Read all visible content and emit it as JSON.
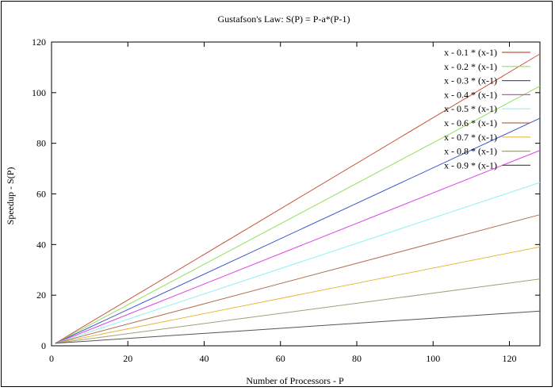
{
  "chart_data": {
    "type": "line",
    "title": "Gustafson's Law: S(P) = P-a*(P-1)",
    "xlabel": "Number of Processors - P",
    "ylabel": "Speedup - S(P)",
    "xlim": [
      0,
      128
    ],
    "ylim": [
      0,
      120
    ],
    "xticks": [
      0,
      20,
      40,
      60,
      80,
      100,
      120
    ],
    "yticks": [
      0,
      20,
      40,
      60,
      80,
      100,
      120
    ],
    "x": [
      1,
      128
    ],
    "grid": false,
    "legend_position": "top-right",
    "series": [
      {
        "name": "x - 0.1 * (x-1)",
        "a": 0.1,
        "color": "#c8553d",
        "values": [
          1,
          115.3
        ]
      },
      {
        "name": "x - 0.2 * (x-1)",
        "a": 0.2,
        "color": "#90e05a",
        "values": [
          1,
          102.6
        ]
      },
      {
        "name": "x - 0.3 * (x-1)",
        "a": 0.3,
        "color": "#3a55cc",
        "values": [
          1,
          89.9
        ]
      },
      {
        "name": "x - 0.4 * (x-1)",
        "a": 0.4,
        "color": "#e040e0",
        "values": [
          1,
          77.2
        ]
      },
      {
        "name": "x - 0.5 * (x-1)",
        "a": 0.5,
        "color": "#8ef0f0",
        "values": [
          1,
          64.5
        ]
      },
      {
        "name": "x - 0.6 * (x-1)",
        "a": 0.6,
        "color": "#b07050",
        "values": [
          1,
          51.8
        ]
      },
      {
        "name": "x - 0.7 * (x-1)",
        "a": 0.7,
        "color": "#e8b840",
        "values": [
          1,
          39.1
        ]
      },
      {
        "name": "x - 0.8 * (x-1)",
        "a": 0.8,
        "color": "#a0a080",
        "values": [
          1,
          26.4
        ]
      },
      {
        "name": "x - 0.9 * (x-1)",
        "a": 0.9,
        "color": "#555555",
        "values": [
          1,
          13.7
        ]
      }
    ]
  }
}
